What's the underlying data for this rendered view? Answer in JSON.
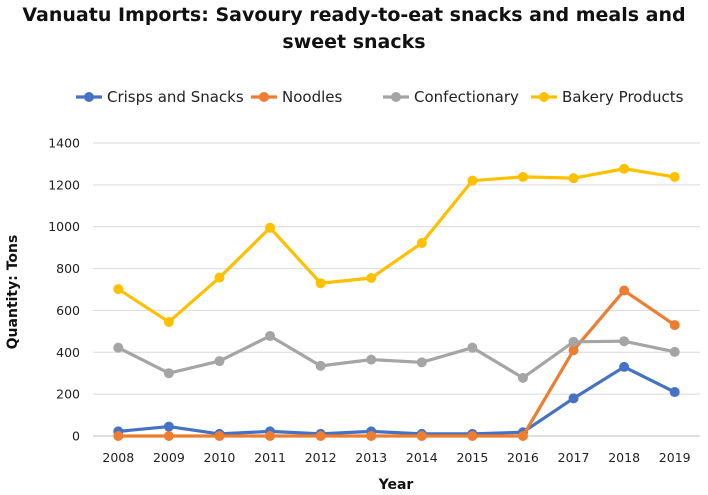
{
  "chart_data": {
    "type": "line",
    "title_line1": "Vanuatu Imports: Savoury ready-to-eat snacks and meals and",
    "title_line2": "sweet snacks",
    "xlabel": "Year",
    "ylabel": "Quantity: Tons",
    "ylim": [
      0,
      1400
    ],
    "yticks": [
      "0",
      "200",
      "400",
      "600",
      "800",
      "1000",
      "1200",
      "1400"
    ],
    "categories": [
      "2008",
      "2009",
      "2010",
      "2011",
      "2012",
      "2013",
      "2014",
      "2015",
      "2016",
      "2017",
      "2018",
      "2019"
    ],
    "grid": "horizontal",
    "legend_position": "top",
    "series": [
      {
        "name": "Crisps and Snacks",
        "color": "#4472c4",
        "values": [
          22,
          45,
          10,
          22,
          10,
          22,
          10,
          10,
          18,
          180,
          330,
          210
        ]
      },
      {
        "name": "Noodles",
        "color": "#ed7d31",
        "values": [
          0,
          0,
          0,
          0,
          0,
          0,
          0,
          0,
          0,
          410,
          695,
          530
        ]
      },
      {
        "name": "Confectionary",
        "color": "#a5a5a5",
        "values": [
          422,
          300,
          358,
          478,
          335,
          365,
          352,
          422,
          278,
          450,
          453,
          402
        ]
      },
      {
        "name": "Bakery Products",
        "color": "#ffc000",
        "values": [
          702,
          545,
          757,
          995,
          730,
          755,
          922,
          1220,
          1238,
          1232,
          1277,
          1238
        ]
      }
    ]
  }
}
